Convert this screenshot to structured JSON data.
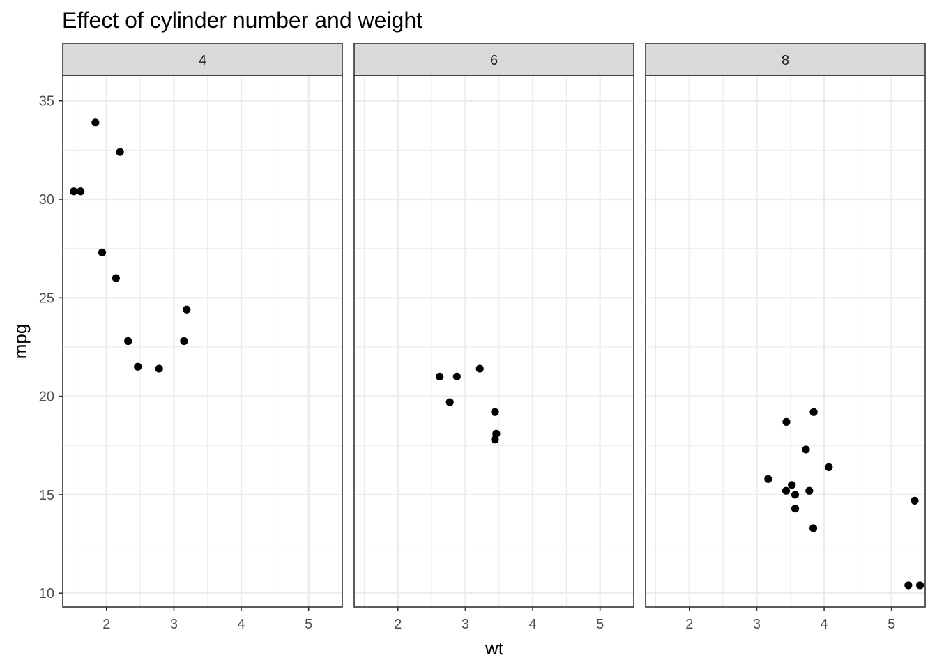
{
  "chart_data": {
    "type": "scatter",
    "title": "Effect of cylinder number and weight",
    "xlabel": "wt",
    "ylabel": "mpg",
    "xlim": [
      1.35,
      5.5
    ],
    "ylim": [
      9.3,
      36.3
    ],
    "x_ticks": [
      2,
      3,
      4,
      5
    ],
    "y_ticks": [
      10,
      15,
      20,
      25,
      30,
      35
    ],
    "grid": true,
    "point_color": "#000000",
    "panels": [
      {
        "label": "4",
        "points": [
          {
            "x": 2.32,
            "y": 22.8
          },
          {
            "x": 3.19,
            "y": 24.4
          },
          {
            "x": 3.15,
            "y": 22.8
          },
          {
            "x": 2.2,
            "y": 32.4
          },
          {
            "x": 1.615,
            "y": 30.4
          },
          {
            "x": 1.835,
            "y": 33.9
          },
          {
            "x": 2.465,
            "y": 21.5
          },
          {
            "x": 1.935,
            "y": 27.3
          },
          {
            "x": 2.14,
            "y": 26.0
          },
          {
            "x": 1.513,
            "y": 30.4
          },
          {
            "x": 2.78,
            "y": 21.4
          }
        ]
      },
      {
        "label": "6",
        "points": [
          {
            "x": 2.62,
            "y": 21.0
          },
          {
            "x": 2.875,
            "y": 21.0
          },
          {
            "x": 3.215,
            "y": 21.4
          },
          {
            "x": 3.46,
            "y": 18.1
          },
          {
            "x": 3.44,
            "y": 19.2
          },
          {
            "x": 3.44,
            "y": 17.8
          },
          {
            "x": 2.77,
            "y": 19.7
          }
        ]
      },
      {
        "label": "8",
        "points": [
          {
            "x": 3.44,
            "y": 18.7
          },
          {
            "x": 3.57,
            "y": 14.3
          },
          {
            "x": 4.07,
            "y": 16.4
          },
          {
            "x": 3.73,
            "y": 17.3
          },
          {
            "x": 3.78,
            "y": 15.2
          },
          {
            "x": 5.25,
            "y": 10.4
          },
          {
            "x": 5.424,
            "y": 10.4
          },
          {
            "x": 5.345,
            "y": 14.7
          },
          {
            "x": 3.52,
            "y": 15.5
          },
          {
            "x": 3.435,
            "y": 15.2
          },
          {
            "x": 3.84,
            "y": 13.3
          },
          {
            "x": 3.845,
            "y": 19.2
          },
          {
            "x": 3.17,
            "y": 15.8
          },
          {
            "x": 3.57,
            "y": 15.0
          }
        ]
      }
    ]
  }
}
